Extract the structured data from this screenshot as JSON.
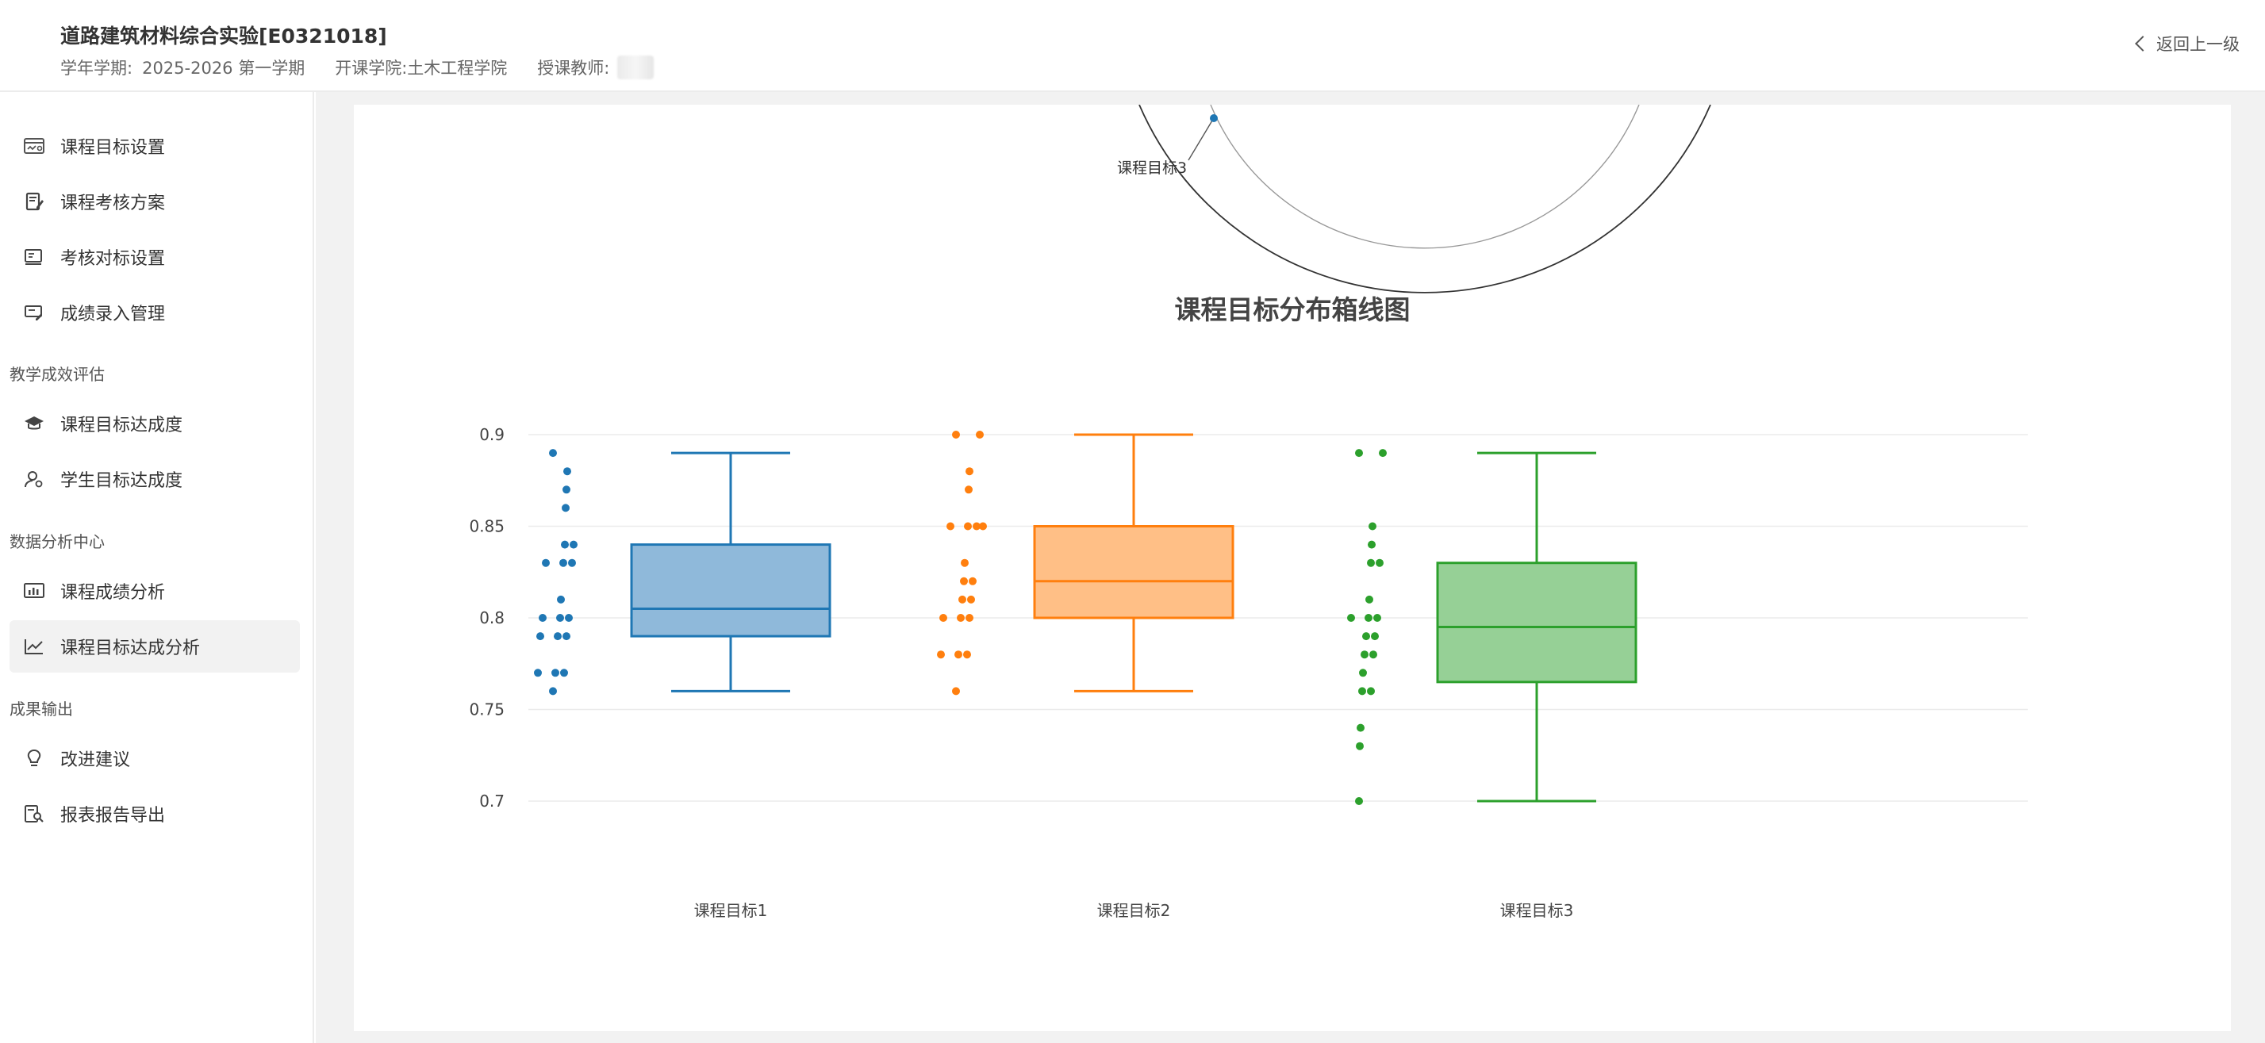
{
  "header": {
    "course_title": "道路建筑材料综合实验[E0321018]",
    "term_label": "学年学期:",
    "term_value": "2025-2026 第一学期",
    "college_label": "开课学院:",
    "college_value": "土木工程学院",
    "teacher_label": "授课教师:",
    "back_label": "返回上一级"
  },
  "sidebar": {
    "items": [
      {
        "label": "课程目标设置",
        "icon": "target-settings-icon"
      },
      {
        "label": "课程考核方案",
        "icon": "assessment-plan-icon"
      },
      {
        "label": "考核对标设置",
        "icon": "benchmark-icon"
      },
      {
        "label": "成绩录入管理",
        "icon": "grade-entry-icon"
      }
    ],
    "sections": [
      {
        "title": "教学成效评估",
        "items": [
          {
            "label": "课程目标达成度",
            "icon": "graduation-cap-icon"
          },
          {
            "label": "学生目标达成度",
            "icon": "student-icon"
          }
        ]
      },
      {
        "title": "数据分析中心",
        "items": [
          {
            "label": "课程成绩分析",
            "icon": "bar-chart-icon"
          },
          {
            "label": "课程目标达成分析",
            "icon": "line-chart-icon",
            "active": true
          }
        ]
      },
      {
        "title": "成果输出",
        "items": [
          {
            "label": "改进建议",
            "icon": "lightbulb-icon"
          },
          {
            "label": "报表报告导出",
            "icon": "report-search-icon"
          }
        ]
      }
    ]
  },
  "radar_partial": {
    "axis_label": "课程目标3"
  },
  "chart_data": {
    "type": "box",
    "title": "课程目标分布箱线图",
    "xlabel": "",
    "ylabel": "",
    "ylim": [
      0.7,
      0.9
    ],
    "yticks": [
      "0.9",
      "0.85",
      "0.8",
      "0.75",
      "0.7"
    ],
    "grid": true,
    "categories": [
      "课程目标1",
      "课程目标2",
      "课程目标3"
    ],
    "series": [
      {
        "color": "#1f77b4",
        "fill": "#8fb9da",
        "min": 0.76,
        "q1": 0.79,
        "median": 0.805,
        "q3": 0.84,
        "max": 0.89,
        "points": [
          0.89,
          0.88,
          0.87,
          0.86,
          0.84,
          0.84,
          0.83,
          0.83,
          0.83,
          0.81,
          0.8,
          0.8,
          0.8,
          0.79,
          0.79,
          0.79,
          0.77,
          0.77,
          0.77,
          0.76
        ]
      },
      {
        "color": "#ff7f0e",
        "fill": "#ffbf86",
        "min": 0.76,
        "q1": 0.8,
        "median": 0.82,
        "q3": 0.85,
        "max": 0.9,
        "points": [
          0.9,
          0.9,
          0.88,
          0.87,
          0.85,
          0.85,
          0.85,
          0.85,
          0.83,
          0.82,
          0.82,
          0.81,
          0.81,
          0.8,
          0.8,
          0.8,
          0.78,
          0.78,
          0.78,
          0.76
        ]
      },
      {
        "color": "#2ca02c",
        "fill": "#96d096",
        "min": 0.7,
        "q1": 0.765,
        "median": 0.795,
        "q3": 0.83,
        "max": 0.89,
        "points": [
          0.89,
          0.89,
          0.85,
          0.84,
          0.83,
          0.83,
          0.81,
          0.8,
          0.8,
          0.8,
          0.79,
          0.79,
          0.78,
          0.78,
          0.77,
          0.76,
          0.76,
          0.74,
          0.73,
          0.7
        ]
      }
    ]
  }
}
